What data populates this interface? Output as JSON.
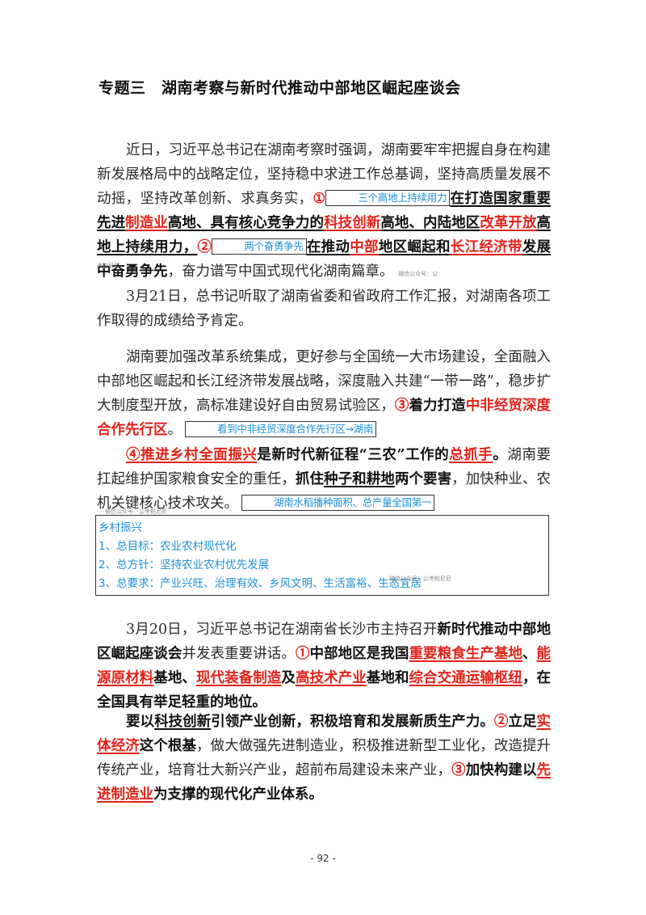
{
  "title": "专题三　湖南考察与新时代推动中部地区崛起座谈会",
  "p1": {
    "t1": "近日，习近平总书记在湖南考察时强调，湖南要牢牢把握自身在构建新发展格局中的战略定位，坚持稳中求进工作总基调，坚持高质量发展不动摇，坚持改革创新、求真务实，",
    "circle1": "①",
    "box1": "三个高地上持续用力",
    "t2": "在打造国家重要先进",
    "r1": "制造业",
    "t3": "高地、具有核心竞争力的",
    "r2": "科技创新",
    "t4": "高地、内陆地区",
    "r3": "改革开放",
    "t5": "高地上持续用力，",
    "circle2": "②",
    "box2": "两个奋勇争先",
    "t6": "在推动",
    "r4": "中部",
    "t7": "地区崛起和",
    "r5": "长江经济带",
    "t8": "发展",
    "t9": "中奋勇争先",
    "t10": "，奋力谱写中国式现代化湖南篇章。",
    "wm1": "微信公众号：公",
    "wm2": "考帕尼尼"
  },
  "p2": {
    "text": "3月21日，总书记听取了湖南省委和省政府工作汇报，对湖南各项工作取得的成绩给予肯定。"
  },
  "p3": {
    "text": "湖南要加强改革系统集成，更好参与全国统一大市场建设，全面融入中部地区崛起和长江经济带发展战略，深度融入共建“一带一路”，稳步扩大制度型开放，高标准建设好自由贸易试验区，",
    "circle": "③",
    "t1": "着力打造",
    "r1": "中非经贸深度合作先行区",
    "t2": "。",
    "box": "看到中非经贸深度合作先行区→湖南"
  },
  "p4": {
    "r1": "④推进乡村全面振兴",
    "t1": "是新时代新征程“三农”工作的",
    "r2": "总抓手",
    "t2": "。",
    "t3": "湖南要扛起维护国家粮食安全的重任，",
    "t4": "抓住",
    "t5": "种子和耕地",
    "t6": "两个要害",
    "t7": "，加快种业、农机关键核心技术攻关。",
    "box": "湖南水稻播种面积、总产量全国第一",
    "wm": "微信公众号：公考帕尼尼"
  },
  "note": {
    "title": "乡村振兴",
    "items": [
      "1、总目标：农业农村现代化",
      "2、总方针：坚持农业农村优先发展",
      "3、总要求：产业兴旺、治理有效、乡风文明、生活富裕、生态宜居"
    ],
    "wm": "微信公众号：公考帕尼尼"
  },
  "p5": {
    "t1": "3月20日，习近平总书记在湖南省长沙市主持召开",
    "t2": "新时代推动中部地区崛起座谈会",
    "t3": "并发表重要讲话。",
    "circle": "①",
    "t4": "中部地区是我国",
    "r1": "重要粮食生产基地",
    "t5": "、",
    "r2": "能源原材料",
    "t6": "基地、",
    "r3": "现代装备制造",
    "t7": "及",
    "r4": "高技术产业",
    "t8": "基地和",
    "r5": "综合交通运输枢纽",
    "t9": "，在全国具有举足轻重的地位。"
  },
  "p6": {
    "t1": "要以",
    "t2": "科技创新",
    "t3": "引领产业创新，积极培育和发展新质生产力。",
    "c2": "②",
    "t4": "立足",
    "r1": "实体经济",
    "t5": "这个根基",
    "t6": "，做大做强先进制造业，积极推进新型工业化，改造提升传统产业，培育壮大新兴产业，超前布局建设未来产业，",
    "c3": "③",
    "t7": "加快构建以",
    "r2": "先进制造业",
    "t8": "为支撑的现代化产业体系。"
  },
  "page_number": "- 92 -"
}
